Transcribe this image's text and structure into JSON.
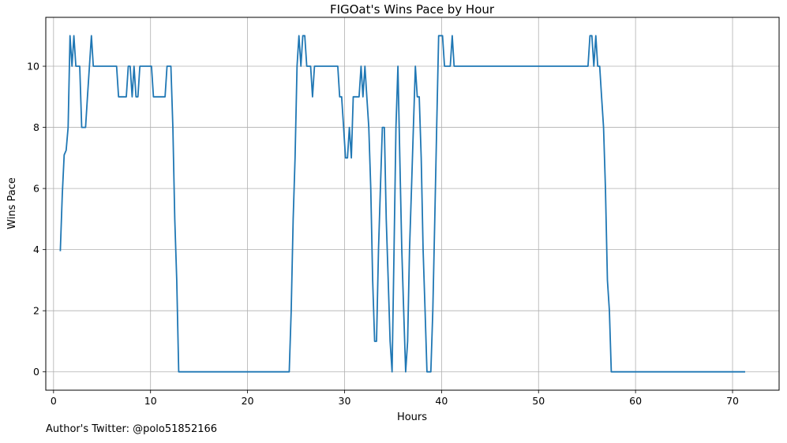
{
  "chart_data": {
    "type": "line",
    "title": "FIGOat's Wins Pace by Hour",
    "xlabel": "Hours",
    "ylabel": "Wins Pace",
    "xlim": [
      -0.8,
      74.8
    ],
    "ylim": [
      -0.6,
      11.6
    ],
    "xticks": [
      0,
      10,
      20,
      30,
      40,
      50,
      60,
      70
    ],
    "yticks": [
      0,
      2,
      4,
      6,
      8,
      10
    ],
    "grid": true,
    "series": [
      {
        "color": "#1f77b4",
        "x": [
          0.7,
          0.9,
          1.1,
          1.3,
          1.5,
          1.7,
          1.9,
          2.1,
          2.3,
          2.5,
          2.7,
          2.9,
          3.1,
          3.3,
          3.5,
          3.7,
          3.9,
          4.1,
          4.3,
          4.5,
          4.7,
          4.9,
          5.1,
          5.3,
          5.5,
          5.7,
          5.9,
          6.1,
          6.3,
          6.5,
          6.7,
          6.9,
          7.1,
          7.3,
          7.5,
          7.7,
          7.9,
          8.1,
          8.3,
          8.5,
          8.7,
          8.9,
          9.1,
          9.3,
          9.5,
          9.7,
          9.9,
          10.1,
          10.3,
          10.5,
          10.7,
          10.9,
          11.1,
          11.3,
          11.5,
          11.7,
          11.9,
          12.1,
          12.3,
          12.5,
          12.7,
          12.9,
          13.1,
          13.3,
          13.5,
          13.7,
          24.3,
          24.5,
          24.7,
          24.9,
          25.1,
          25.3,
          25.5,
          25.7,
          25.9,
          26.1,
          26.3,
          26.5,
          26.7,
          26.9,
          27.1,
          27.3,
          27.5,
          27.7,
          27.9,
          28.1,
          28.3,
          28.5,
          28.7,
          28.9,
          29.1,
          29.3,
          29.5,
          29.7,
          29.9,
          30.1,
          30.3,
          30.5,
          30.7,
          30.9,
          31.1,
          31.3,
          31.5,
          31.7,
          31.9,
          32.1,
          32.3,
          32.5,
          32.7,
          32.9,
          33.1,
          33.3,
          33.5,
          33.7,
          33.9,
          34.1,
          34.3,
          34.5,
          34.7,
          34.9,
          35.1,
          35.3,
          35.5,
          35.7,
          35.9,
          36.1,
          36.3,
          36.5,
          36.7,
          36.9,
          37.1,
          37.3,
          37.5,
          37.7,
          37.9,
          38.1,
          38.3,
          38.5,
          38.7,
          38.9,
          39.1,
          39.3,
          39.5,
          39.7,
          39.9,
          40.1,
          40.3,
          40.5,
          40.7,
          40.9,
          41.1,
          41.3,
          54.5,
          54.7,
          54.9,
          55.1,
          55.3,
          55.5,
          55.7,
          55.9,
          56.1,
          56.3,
          56.5,
          56.7,
          56.9,
          57.1,
          57.3,
          57.5,
          57.7,
          57.9,
          58.1,
          58.3,
          58.5,
          58.7,
          58.9,
          59.1,
          59.3,
          59.5,
          59.7,
          59.9,
          60.1,
          60.3,
          60.5,
          60.7,
          60.9,
          61.1,
          61.3,
          61.5,
          71.3
        ],
        "y": [
          3.95,
          5.8,
          7.1,
          7.25,
          8.0,
          11.0,
          10.0,
          11.0,
          10.0,
          10.0,
          10.0,
          8.0,
          8.0,
          8.0,
          9.0,
          10.0,
          11.0,
          10.0,
          10.0,
          10.0,
          10.0,
          10.0,
          10.0,
          10.0,
          10.0,
          10.0,
          10.0,
          10.0,
          10.0,
          10.0,
          9.0,
          9.0,
          9.0,
          9.0,
          9.0,
          10.0,
          10.0,
          9.0,
          10.0,
          9.0,
          9.0,
          10.0,
          10.0,
          10.0,
          10.0,
          10.0,
          10.0,
          10.0,
          9.0,
          9.0,
          9.0,
          9.0,
          9.0,
          9.0,
          9.0,
          10.0,
          10.0,
          10.0,
          8.0,
          5.0,
          3.0,
          0.0,
          0.0,
          0.0,
          0.0,
          0.0,
          0.0,
          2.0,
          5.0,
          7.0,
          10.0,
          11.0,
          10.0,
          11.0,
          11.0,
          10.0,
          10.0,
          10.0,
          9.0,
          10.0,
          10.0,
          10.0,
          10.0,
          10.0,
          10.0,
          10.0,
          10.0,
          10.0,
          10.0,
          10.0,
          10.0,
          10.0,
          9.0,
          9.0,
          8.0,
          7.0,
          7.0,
          8.0,
          7.0,
          9.0,
          9.0,
          9.0,
          9.0,
          10.0,
          9.0,
          10.0,
          9.0,
          8.0,
          6.0,
          3.0,
          1.0,
          1.0,
          4.0,
          6.0,
          8.0,
          8.0,
          5.0,
          3.0,
          1.0,
          0.0,
          4.0,
          8.0,
          10.0,
          7.0,
          4.0,
          2.0,
          0.0,
          1.0,
          4.0,
          6.0,
          8.0,
          10.0,
          9.0,
          9.0,
          7.0,
          4.0,
          2.0,
          0.0,
          0.0,
          0.0,
          2.0,
          5.0,
          8.0,
          11.0,
          11.0,
          11.0,
          10.0,
          10.0,
          10.0,
          10.0,
          11.0,
          10.0,
          10.0,
          10.0,
          10.0,
          10.0,
          11.0,
          11.0,
          10.0,
          11.0,
          10.0,
          10.0,
          9.0,
          8.0,
          6.0,
          3.0,
          2.0,
          0.0,
          0.0,
          0.0,
          0.0,
          0.0,
          0.0,
          0.0,
          0.0,
          0.0,
          0.0,
          0.0,
          0.0,
          0.0,
          0.0,
          0.0,
          0.0,
          0.0,
          0.0,
          0.0,
          0.0,
          0.0,
          0.0
        ]
      }
    ]
  },
  "footnote": "Author's Twitter: @polo51852166"
}
